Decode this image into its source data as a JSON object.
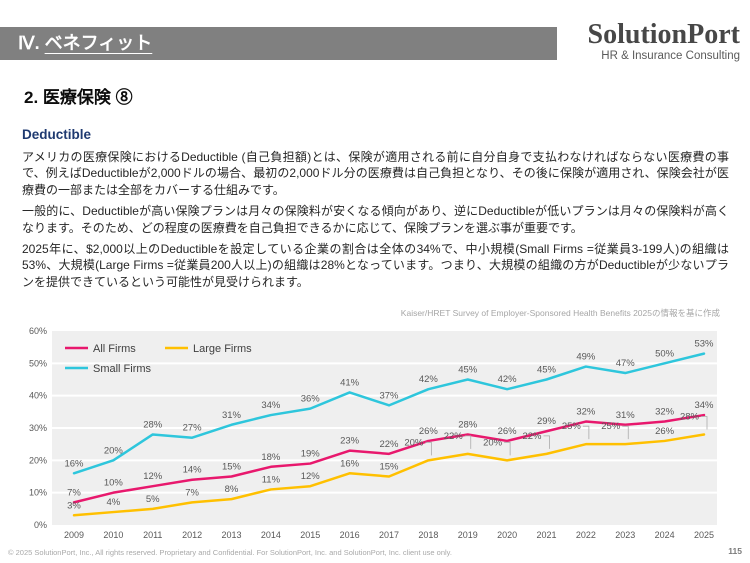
{
  "header": {
    "section_label": "Ⅳ. ",
    "section_title": "ベネフィット",
    "logo_name": "SolutionPort",
    "logo_tagline": "HR & Insurance Consulting"
  },
  "page": {
    "title": "2. 医療保険 ⑧",
    "heading": "Deductible",
    "paragraphs": [
      "アメリカの医療保険におけるDeductible (自己負担額)とは、保険が適用される前に自分自身で支払わなければならない医療費の事で、例えばDeductibleが2,000ドルの場合、最初の2,000ドル分の医療費は自己負担となり、その後に保険が適用され、保険会社が医療費の一部または全部をカバーする仕組みです。",
      "一般的に、Deductibleが高い保険プランは月々の保険料が安くなる傾向があり、逆にDeductibleが低いプランは月々の保険料が高くなります。そのため、どの程度の医療費を自己負担できるかに応じて、保険プランを選ぶ事が重要です。",
      "2025年に、$2,000以上のDeductibleを設定している企業の割合は全体の34%で、中小規模(Small Firms =従業員3-199人)の組織は53%、大規模(Large Firms =従業員200人以上)の組織は28%となっています。つまり、大規模の組織の方がDeductibleが少ないプランを提供できているという可能性が見受けられます。"
    ],
    "source_note": "Kaiser/HRET Survey of Employer-Sponsored Health Benefits 2025の情報を基に作成"
  },
  "chart_data": {
    "type": "line",
    "x": [
      2009,
      2010,
      2011,
      2012,
      2013,
      2014,
      2015,
      2016,
      2017,
      2018,
      2019,
      2020,
      2021,
      2022,
      2023,
      2024,
      2025
    ],
    "series": [
      {
        "name": "All Firms",
        "color": "#e8186d",
        "values": [
          7,
          10,
          12,
          14,
          15,
          18,
          19,
          23,
          22,
          26,
          28,
          26,
          29,
          32,
          31,
          32,
          34
        ]
      },
      {
        "name": "Large Firms",
        "color": "#ffc000",
        "values": [
          3,
          4,
          5,
          7,
          8,
          11,
          12,
          16,
          15,
          20,
          22,
          20,
          22,
          25,
          25,
          26,
          28
        ]
      },
      {
        "name": "Small Firms",
        "color": "#2ec6dc",
        "values": [
          16,
          20,
          28,
          27,
          31,
          34,
          36,
          41,
          37,
          42,
          45,
          42,
          45,
          49,
          47,
          50,
          53
        ]
      }
    ],
    "title": "",
    "xlabel": "",
    "ylabel": "",
    "ylim": [
      0,
      60
    ],
    "ytick_step": 10,
    "ytick_suffix": "%",
    "grid": true,
    "gridline_color": "#ffffff",
    "plot_background": "#efefef",
    "label_color": "#595959",
    "axis_label_color": "#595959",
    "legend_position": "top-left-inside",
    "legend_text_color": "#404040",
    "large_callout_years": [
      2018,
      2019,
      2020,
      2021,
      2022,
      2023,
      2025
    ]
  },
  "footer": {
    "copyright": "© 2025 SolutionPort, Inc., All rights reserved. Proprietary and Confidential. For SolutionPort, Inc. and SolutionPort, Inc. client use only.",
    "page_number": "115"
  }
}
